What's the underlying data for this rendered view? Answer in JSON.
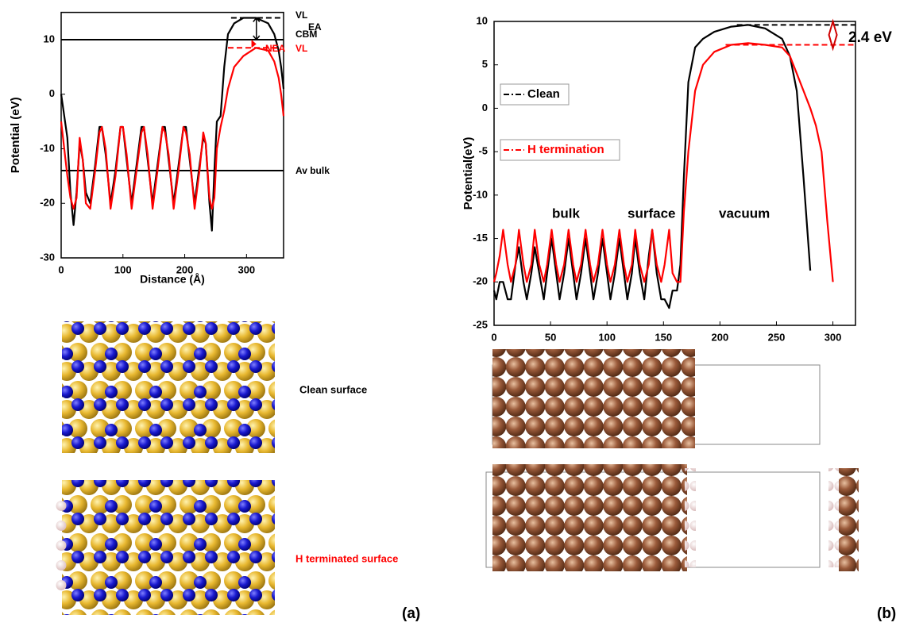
{
  "chart_data": [
    {
      "type": "line",
      "ylabel": "Potential (eV)",
      "xlabel": "Distance (Å)",
      "xlim": [
        0,
        360
      ],
      "ylim": [
        -30,
        15
      ],
      "xticks": [
        0,
        100,
        200,
        300
      ],
      "yticks": [
        -30,
        -20,
        -10,
        0,
        10
      ],
      "x": [
        0,
        5,
        10,
        15,
        20,
        25,
        30,
        35,
        40,
        47,
        55,
        62,
        66,
        72,
        80,
        88,
        96,
        100,
        106,
        114,
        122,
        130,
        134,
        140,
        148,
        156,
        164,
        168,
        174,
        182,
        190,
        198,
        202,
        208,
        216,
        224,
        230,
        234,
        240,
        244,
        248,
        252,
        258,
        264,
        270,
        280,
        295,
        315,
        335,
        345,
        352,
        356,
        360
      ],
      "series": [
        {
          "color": "#000000",
          "values": [
            0,
            -4,
            -8,
            -18,
            -24,
            -18,
            -9,
            -12,
            -18,
            -20,
            -13,
            -6,
            -6,
            -11,
            -20,
            -14,
            -6,
            -6,
            -12,
            -20,
            -13,
            -6,
            -6,
            -12,
            -20,
            -13,
            -6,
            -6,
            -12,
            -20,
            -13,
            -6,
            -6,
            -12,
            -20,
            -13,
            -8,
            -9,
            -20,
            -25,
            -14,
            -5,
            -4,
            5,
            11,
            13,
            14,
            14,
            13,
            11,
            8,
            5,
            1
          ]
        },
        {
          "color": "#ff0000",
          "values": [
            -5,
            -10,
            -15,
            -19,
            -21,
            -19,
            -8,
            -12,
            -20,
            -21,
            -14,
            -7,
            -6,
            -10,
            -21,
            -15,
            -6,
            -6,
            -11,
            -21,
            -14,
            -7,
            -6,
            -11,
            -21,
            -14,
            -6,
            -7,
            -11,
            -21,
            -14,
            -6,
            -7,
            -11,
            -21,
            -14,
            -7,
            -9,
            -19,
            -21,
            -19,
            -10,
            -6,
            -3,
            1,
            5,
            7,
            8.5,
            8,
            6,
            3,
            0,
            -4
          ]
        }
      ],
      "reference_lines": [
        {
          "y": 10,
          "color": "#000000"
        },
        {
          "y": -14,
          "color": "#000000"
        },
        {
          "y": 14,
          "x": [
            275,
            355
          ],
          "color": "#000000",
          "dashed": true
        },
        {
          "y": 8.5,
          "x": [
            270,
            355
          ],
          "color": "#ff0000",
          "dashed": true
        }
      ],
      "annotations": [
        {
          "text": "VL",
          "color": "#000000"
        },
        {
          "text": "EA",
          "color": "#000000"
        },
        {
          "text": "CBM",
          "color": "#000000"
        },
        {
          "text": "NEA",
          "color": "#ff0000"
        },
        {
          "text": "VL",
          "color": "#ff0000"
        },
        {
          "text": "Av bulk",
          "color": "#000000"
        }
      ]
    },
    {
      "type": "line",
      "ylabel": "Potential(eV)",
      "legend": "left",
      "xlim": [
        0,
        320
      ],
      "ylim": [
        -25,
        10
      ],
      "xticks": [
        0,
        50,
        100,
        150,
        200,
        250,
        300
      ],
      "yticks": [
        -25,
        -20,
        -15,
        -10,
        -5,
        0,
        5,
        10
      ],
      "x": [
        0,
        2,
        5,
        8,
        12,
        15,
        19,
        22,
        26,
        29,
        33,
        36,
        40,
        44,
        47,
        51,
        55,
        58,
        62,
        66,
        70,
        73,
        77,
        81,
        85,
        88,
        92,
        96,
        100,
        103,
        107,
        111,
        115,
        118,
        122,
        125,
        129,
        133,
        137,
        140,
        144,
        148,
        151,
        155,
        158,
        162,
        165,
        168,
        172,
        178,
        185,
        195,
        210,
        225,
        240,
        255,
        262,
        268,
        274,
        280,
        285,
        290,
        295,
        300
      ],
      "series": [
        {
          "name": "Clean",
          "color": "#000000",
          "values": [
            -21,
            -22,
            -20,
            -20,
            -22,
            -22,
            -18,
            -16,
            -20,
            -22,
            -19,
            -16,
            -19,
            -22,
            -19,
            -15,
            -19,
            -22,
            -19,
            -15,
            -19,
            -22,
            -19,
            -15,
            -19,
            -22,
            -19,
            -15,
            -19,
            -22,
            -19,
            -15,
            -19,
            -22,
            -19,
            -15,
            -19,
            -22,
            -17,
            -14,
            -19,
            -22,
            -22,
            -23,
            -21,
            -21,
            -18,
            -8,
            3,
            7,
            8,
            8.8,
            9.4,
            9.6,
            9.2,
            8,
            6,
            2,
            -8,
            -18.7,
            null,
            null,
            null,
            null
          ]
        },
        {
          "name": "H termination",
          "color": "#ff0000",
          "values": [
            -20,
            -19,
            -17,
            -14,
            -18,
            -20,
            -18,
            -14,
            -18,
            -20,
            -18,
            -14,
            -18,
            -20,
            -18,
            -14,
            -18,
            -20,
            -18,
            -14,
            -18,
            -20,
            -18,
            -14,
            -18,
            -20,
            -18,
            -14,
            -18,
            -20,
            -18,
            -14,
            -18,
            -20,
            -18,
            -14,
            -18,
            -20,
            -18,
            -14,
            -18,
            -20,
            -18,
            -14,
            -19,
            -20,
            -20,
            -12,
            -5,
            2,
            5,
            6.5,
            7.3,
            7.5,
            7.3,
            7,
            6,
            4,
            2,
            0,
            -2,
            -5,
            -13,
            -20
          ]
        }
      ],
      "reference_lines": [
        {
          "y": 9.6,
          "x": [
            215,
            320
          ],
          "color": "#000000",
          "dashed": true
        },
        {
          "y": 7.3,
          "x": [
            205,
            320
          ],
          "color": "#ff0000",
          "dashed": true
        }
      ],
      "annotations": [
        {
          "text": "bulk",
          "color": "#000000"
        },
        {
          "text": "surface",
          "color": "#000000"
        },
        {
          "text": "vacuum",
          "color": "#000000"
        },
        {
          "text": "2.4 eV",
          "color": "#000000"
        }
      ]
    }
  ],
  "figure": {
    "clean_label": "Clean surface",
    "h_label": "H terminated surface",
    "panel_a": "(a)",
    "panel_b": "(b)"
  }
}
